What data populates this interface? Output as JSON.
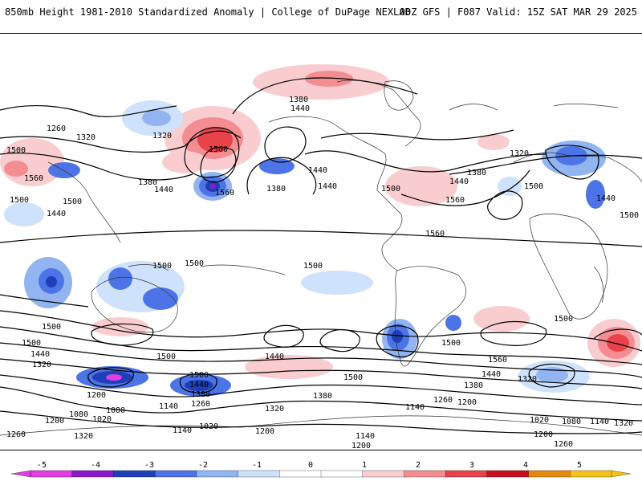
{
  "header": {
    "title": "850mb Height 1981-2010 Standardized Anomaly | College of DuPage NEXLAB",
    "run": "00Z GFS | F087 Valid: 15Z SAT MAR 29 2025"
  },
  "contour_labels": {
    "c1200": "1200",
    "c1260": "1260",
    "c1320": "1320",
    "c1380": "1380",
    "c1440": "1440",
    "c1500": "1500",
    "c1560": "1560",
    "c1020": "1020",
    "c1080": "1080",
    "c1140": "1140"
  },
  "colorbar": {
    "ticks": [
      "-5",
      "-4",
      "-3",
      "-2",
      "-1",
      "0",
      "1",
      "2",
      "3",
      "4",
      "5"
    ],
    "colors": [
      "#e23ee0",
      "#8a1bc9",
      "#1f3fb8",
      "#4d74e6",
      "#92b5f2",
      "#cfe2fb",
      "#ffffff",
      "#ffffff",
      "#f9cdd0",
      "#f48d92",
      "#e8424a",
      "#c8101e",
      "#e58a0c",
      "#f4c21a"
    ]
  },
  "colors": {
    "neg_light": "#cfe2fb",
    "neg_mid": "#92b5f2",
    "neg_strong": "#4d74e6",
    "neg_deep": "#1f3fb8",
    "neg_extreme": "#8a1bc9",
    "pos_light": "#f9cdd0",
    "pos_mid": "#f48d92",
    "pos_strong": "#e8424a"
  }
}
